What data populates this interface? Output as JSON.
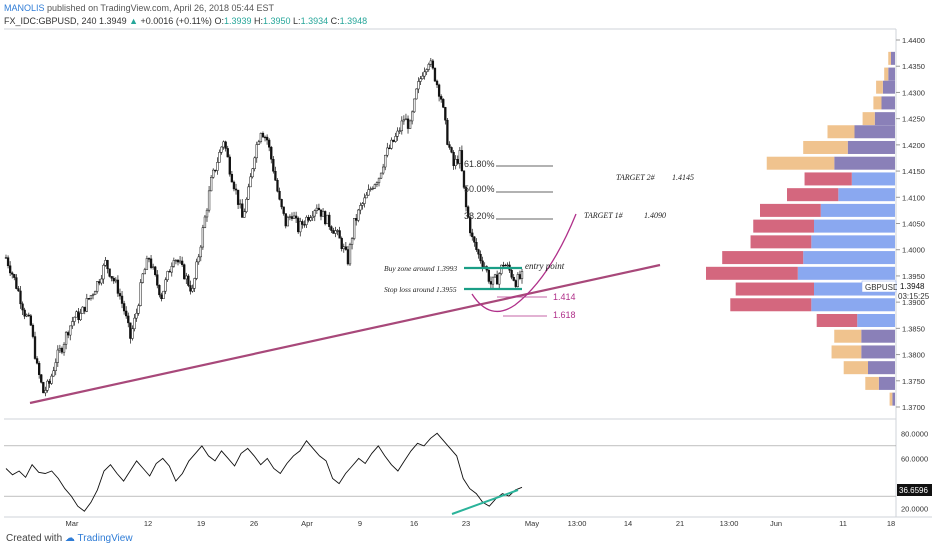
{
  "header": {
    "author": "MANOLIS",
    "published": "published on TradingView.com, April 26, 2018 05:44 EST"
  },
  "legend": {
    "symbol": "FX_IDC:GBPUSD, 240",
    "price": "1.3949",
    "change": "+0.0016 (+0.11%)",
    "o_label": "O:",
    "o": "1.3939",
    "h_label": "H:",
    "h": "1.3950",
    "l_label": "L:",
    "l": "1.3934",
    "c_label": "C:",
    "c": "1.3948"
  },
  "footer": {
    "created_with": "Created with",
    "brand": "TradingView"
  },
  "colors": {
    "candle": "#111111",
    "trendline": "#a8487a",
    "curve": "#b0308a",
    "entry_line": "#1a9e86",
    "rsi_line": "#111111",
    "rsi_trend": "#2bb39a",
    "fib_line": "#333333",
    "vp_pink": "#d4677e",
    "vp_blue": "#8aa8f0",
    "vp_tan": "#f0c38e",
    "vp_purple": "#8a80b8"
  },
  "chart_data": {
    "type": "candlestick",
    "symbol": "GBPUSD",
    "timeframe": "240",
    "x_ticks": [
      "Mar",
      "12",
      "19",
      "26",
      "Apr",
      "9",
      "16",
      "23",
      "May",
      "13:00",
      "14",
      "21",
      "13:00",
      "Jun",
      "11",
      "18"
    ],
    "y_ticks": [
      "1.4400",
      "1.4350",
      "1.4300",
      "1.4250",
      "1.4200",
      "1.4150",
      "1.4100",
      "1.4050",
      "1.4000",
      "1.3950",
      "1.3900",
      "1.3850",
      "1.3800",
      "1.3750",
      "1.3700"
    ],
    "ylim": [
      1.369,
      1.4465
    ],
    "price_path": [
      1.3985,
      1.3955,
      1.392,
      1.388,
      1.3855,
      1.3775,
      1.3728,
      1.3745,
      1.379,
      1.3815,
      1.3848,
      1.3872,
      1.3875,
      1.39,
      1.392,
      1.3945,
      1.3975,
      1.395,
      1.3925,
      1.3885,
      1.3832,
      1.388,
      1.395,
      1.3985,
      1.3945,
      1.3912,
      1.395,
      1.399,
      1.397,
      1.3945,
      1.392,
      1.399,
      1.406,
      1.413,
      1.417,
      1.421,
      1.4155,
      1.411,
      1.406,
      1.411,
      1.4185,
      1.423,
      1.421,
      1.4155,
      1.409,
      1.405,
      1.407,
      1.404,
      1.4055,
      1.407,
      1.4085,
      1.4065,
      1.405,
      1.4035,
      1.401,
      1.398,
      1.405,
      1.408,
      1.41,
      1.4125,
      1.414,
      1.418,
      1.42,
      1.422,
      1.425,
      1.4235,
      1.43,
      1.434,
      1.4362,
      1.433,
      1.429,
      1.421,
      1.416,
      1.418,
      1.408,
      1.402,
      1.399,
      1.397,
      1.3935,
      1.3945,
      1.3975,
      1.396,
      1.394,
      1.3948
    ],
    "current_price": {
      "label": "GBPUSD",
      "value": "1.3948",
      "countdown": "03:15:25"
    },
    "fibonacci": [
      {
        "label": "61.80%",
        "price": 1.419
      },
      {
        "label": "50.00%",
        "price": 1.4145
      },
      {
        "label": "38.20%",
        "price": 1.409
      }
    ],
    "extensions": [
      {
        "label": "1.414",
        "price": 1.3919
      },
      {
        "label": "1.618",
        "price": 1.3893
      }
    ],
    "annotations": [
      {
        "label": "Buy zone around",
        "value": "1.3993",
        "price": 1.3993
      },
      {
        "label": "Stop loss around",
        "value": "1.3955",
        "price": 1.3955
      },
      {
        "label": "entry point",
        "price": 1.3993
      },
      {
        "label": "TARGET 2#",
        "value": "1.4145",
        "price": 1.4145
      },
      {
        "label": "TARGET 1#",
        "value": "1.4090",
        "price": 1.409
      }
    ],
    "trendline": [
      {
        "date": "Mar 1",
        "price": 1.3718
      },
      {
        "date": "May 16",
        "price": 1.399
      }
    ],
    "volume_profile": [
      {
        "price": 1.4365,
        "up": 0.03,
        "down": 0.02,
        "outside": true
      },
      {
        "price": 1.4335,
        "up": 0.05,
        "down": 0.03,
        "outside": true
      },
      {
        "price": 1.431,
        "up": 0.09,
        "down": 0.05,
        "outside": true
      },
      {
        "price": 1.428,
        "up": 0.1,
        "down": 0.06,
        "outside": true
      },
      {
        "price": 1.425,
        "up": 0.15,
        "down": 0.09,
        "outside": true
      },
      {
        "price": 1.4225,
        "up": 0.3,
        "down": 0.2,
        "outside": true
      },
      {
        "price": 1.4195,
        "up": 0.35,
        "down": 0.33,
        "outside": true
      },
      {
        "price": 1.4165,
        "up": 0.45,
        "down": 0.5,
        "outside": true
      },
      {
        "price": 1.4135,
        "up": 0.32,
        "down": 0.35,
        "outside": false
      },
      {
        "price": 1.4105,
        "up": 0.42,
        "down": 0.38,
        "outside": false
      },
      {
        "price": 1.4075,
        "up": 0.55,
        "down": 0.45,
        "outside": false
      },
      {
        "price": 1.4045,
        "up": 0.6,
        "down": 0.45,
        "outside": false
      },
      {
        "price": 1.4015,
        "up": 0.62,
        "down": 0.45,
        "outside": false
      },
      {
        "price": 1.3985,
        "up": 0.68,
        "down": 0.6,
        "outside": false
      },
      {
        "price": 1.3955,
        "up": 0.72,
        "down": 0.68,
        "outside": false
      },
      {
        "price": 1.3925,
        "up": 0.6,
        "down": 0.58,
        "outside": false
      },
      {
        "price": 1.3895,
        "up": 0.62,
        "down": 0.6,
        "outside": false
      },
      {
        "price": 1.3865,
        "up": 0.28,
        "down": 0.3,
        "outside": false
      },
      {
        "price": 1.3835,
        "up": 0.25,
        "down": 0.2,
        "outside": true
      },
      {
        "price": 1.3805,
        "up": 0.25,
        "down": 0.22,
        "outside": true
      },
      {
        "price": 1.3775,
        "up": 0.2,
        "down": 0.18,
        "outside": true
      },
      {
        "price": 1.3745,
        "up": 0.12,
        "down": 0.1,
        "outside": true
      },
      {
        "price": 1.3715,
        "up": 0.02,
        "down": 0.02,
        "outside": true
      }
    ],
    "rsi": {
      "y_ticks": [
        "80.0000",
        "60.0000",
        "20.0000"
      ],
      "levels": [
        70,
        30
      ],
      "ylim": [
        15,
        85
      ],
      "current": "36.6596",
      "values": [
        52,
        47,
        50,
        45,
        55,
        49,
        48,
        50,
        44,
        36,
        30,
        22,
        18,
        25,
        35,
        50,
        55,
        48,
        42,
        50,
        58,
        52,
        46,
        56,
        60,
        54,
        42,
        48,
        58,
        64,
        70,
        62,
        58,
        66,
        60,
        54,
        64,
        68,
        62,
        55,
        60,
        52,
        48,
        56,
        62,
        66,
        74,
        68,
        62,
        58,
        44,
        40,
        48,
        54,
        60,
        56,
        64,
        70,
        62,
        55,
        50,
        58,
        66,
        72,
        70,
        76,
        80,
        74,
        68,
        62,
        44,
        36,
        32,
        25,
        22,
        28,
        32,
        30,
        35,
        37
      ]
    }
  }
}
